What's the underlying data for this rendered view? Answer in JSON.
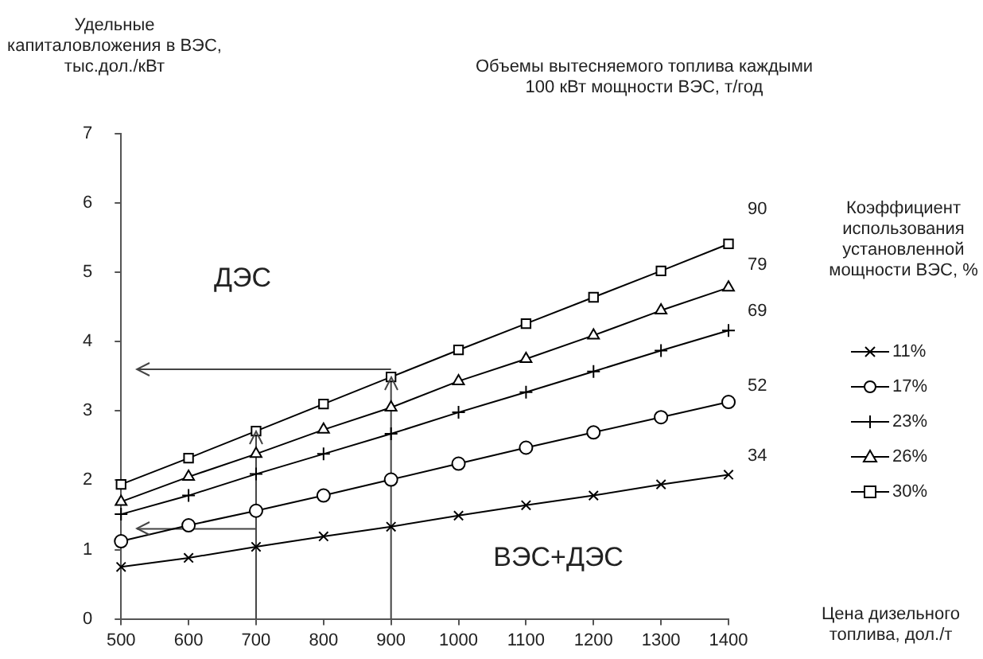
{
  "chart_data": {
    "type": "line",
    "title": "Объемы вытесняемого топлива каждыми 100 кВт мощности ВЭС, т/год",
    "ylabel": "Удельные капиталовложения в ВЭС, тыс.дол./кВт",
    "xlabel": "Цена дизельного топлива, дол./т",
    "legend_title": "Коэффициент использования установленной мощности ВЭС, %",
    "x": [
      500,
      600,
      700,
      800,
      900,
      1000,
      1100,
      1200,
      1300,
      1400
    ],
    "xlim": [
      500,
      1400
    ],
    "xticks": [
      500,
      600,
      700,
      800,
      900,
      1000,
      1100,
      1200,
      1300,
      1400
    ],
    "ylim": [
      0,
      7
    ],
    "yticks": [
      0,
      1,
      2,
      3,
      4,
      5,
      6,
      7
    ],
    "grid": false,
    "legend": "right",
    "series": [
      {
        "name": "11%",
        "color": "#000000",
        "marker": "cross",
        "values": [
          0.75,
          0.88,
          1.04,
          1.19,
          1.33,
          1.49,
          1.64,
          1.78,
          1.94,
          2.08
        ]
      },
      {
        "name": "17%",
        "color": "#000000",
        "marker": "circle",
        "values": [
          1.12,
          1.35,
          1.56,
          1.78,
          2.01,
          2.24,
          2.47,
          2.69,
          2.91,
          3.13
        ]
      },
      {
        "name": "23%",
        "color": "#000000",
        "marker": "plus",
        "values": [
          1.51,
          1.78,
          2.09,
          2.38,
          2.67,
          2.98,
          3.27,
          3.57,
          3.87,
          4.16
        ]
      },
      {
        "name": "26%",
        "color": "#000000",
        "marker": "triangle",
        "values": [
          1.69,
          2.05,
          2.38,
          2.73,
          3.05,
          3.43,
          3.75,
          4.09,
          4.45,
          4.78
        ]
      },
      {
        "name": "30%",
        "color": "#000000",
        "marker": "square",
        "values": [
          1.94,
          2.32,
          2.71,
          3.1,
          3.49,
          3.88,
          4.26,
          4.64,
          5.02,
          5.41
        ]
      }
    ],
    "ref_lines": [
      {
        "axis": "x",
        "value": 700,
        "color": "#444444"
      },
      {
        "axis": "x",
        "value": 900,
        "color": "#444444"
      },
      {
        "axis": "y",
        "value": 1.3,
        "color": "#444444"
      },
      {
        "axis": "y",
        "value": 3.6,
        "color": "#444444"
      }
    ],
    "annotations": [
      "90",
      "79",
      "69",
      "52",
      "34",
      "ДЭС",
      "ВЭС+ДЭС"
    ]
  }
}
